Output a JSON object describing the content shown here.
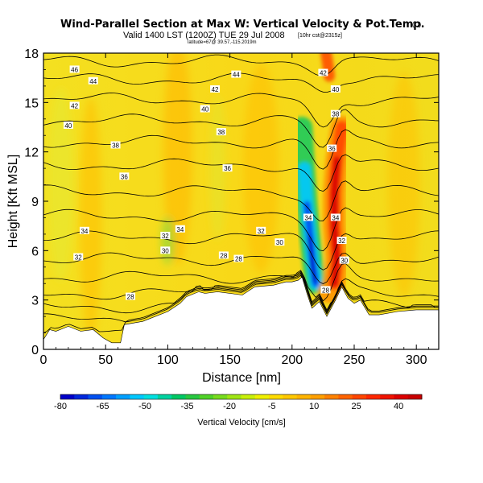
{
  "chart_data": {
    "type": "heatmap",
    "title": "Wind-Parallel Section at Max W: Vertical Velocity & Pot.Temp.",
    "title_mark": "(C)",
    "subtitle": "Valid 1400 LST (1200Z) TUE 29 Jul 2008",
    "subtitle_extra": "[10hr cst@2315z]",
    "subtitle_small": "latitude=67@ 39.57,-115.2019m",
    "xlabel": "Distance [nm]",
    "ylabel": "Height [Kft MSL]",
    "xlim": [
      0,
      318
    ],
    "ylim": [
      0,
      18
    ],
    "x_ticks": [
      "0",
      "50",
      "100",
      "150",
      "200",
      "250",
      "300"
    ],
    "y_ticks": [
      "0",
      "3",
      "6",
      "9",
      "12",
      "15",
      "18"
    ],
    "colorbar": {
      "label": "Vertical Velocity [cm/s]",
      "tick_labels": [
        "-80",
        "-65",
        "-50",
        "-35",
        "-20",
        "-5",
        "10",
        "25",
        "40"
      ],
      "colors": [
        "#0000c8",
        "#0028dc",
        "#0050f0",
        "#0078ff",
        "#00a0ff",
        "#00c8ff",
        "#00e0e0",
        "#00d2a0",
        "#00c864",
        "#28c840",
        "#50d228",
        "#78dc1e",
        "#a0e614",
        "#c8f00a",
        "#f0f000",
        "#ffdc00",
        "#ffc800",
        "#ffb400",
        "#ffa000",
        "#ff8200",
        "#ff6400",
        "#ff4600",
        "#ff2800",
        "#f01400",
        "#dc0000",
        "#c80000"
      ]
    },
    "terrain_profile": {
      "x": [
        0,
        5,
        10,
        20,
        30,
        40,
        48,
        55,
        62,
        65,
        80,
        100,
        110,
        115,
        125,
        130,
        140,
        160,
        170,
        185,
        195,
        200,
        205,
        208,
        212,
        216,
        222,
        228,
        235,
        240,
        245,
        250,
        255,
        262,
        270,
        285,
        300,
        318
      ],
      "y": [
        0.6,
        1.2,
        1.1,
        1.4,
        1.1,
        1.2,
        0.7,
        0.4,
        0.4,
        1.5,
        1.7,
        2.3,
        2.8,
        3.2,
        3.5,
        3.4,
        3.5,
        3.3,
        3.8,
        3.9,
        4.1,
        4.1,
        4.2,
        4.4,
        3.4,
        2.5,
        2.9,
        2.0,
        3.0,
        3.8,
        3.1,
        2.8,
        3.0,
        2.1,
        2.1,
        2.3,
        2.4,
        2.4
      ]
    },
    "contour_labels": [
      {
        "text": "46",
        "x": 25,
        "y": 17.0
      },
      {
        "text": "44",
        "x": 40,
        "y": 16.3
      },
      {
        "text": "44",
        "x": 155,
        "y": 16.7
      },
      {
        "text": "42",
        "x": 25,
        "y": 14.8
      },
      {
        "text": "42",
        "x": 138,
        "y": 15.8
      },
      {
        "text": "42",
        "x": 225,
        "y": 16.8
      },
      {
        "text": "40",
        "x": 20,
        "y": 13.6
      },
      {
        "text": "40",
        "x": 130,
        "y": 14.6
      },
      {
        "text": "40",
        "x": 235,
        "y": 15.8
      },
      {
        "text": "38",
        "x": 58,
        "y": 12.4
      },
      {
        "text": "38",
        "x": 143,
        "y": 13.2
      },
      {
        "text": "38",
        "x": 235,
        "y": 14.3
      },
      {
        "text": "36",
        "x": 65,
        "y": 10.5
      },
      {
        "text": "36",
        "x": 148,
        "y": 11.0
      },
      {
        "text": "36",
        "x": 232,
        "y": 12.2
      },
      {
        "text": "34",
        "x": 33,
        "y": 7.2
      },
      {
        "text": "34",
        "x": 110,
        "y": 7.3
      },
      {
        "text": "34",
        "x": 213,
        "y": 8.0
      },
      {
        "text": "34",
        "x": 235,
        "y": 8.0
      },
      {
        "text": "32",
        "x": 98,
        "y": 6.9
      },
      {
        "text": "32",
        "x": 175,
        "y": 7.2
      },
      {
        "text": "32",
        "x": 28,
        "y": 5.6
      },
      {
        "text": "32",
        "x": 240,
        "y": 6.6
      },
      {
        "text": "30",
        "x": 98,
        "y": 6.0
      },
      {
        "text": "30",
        "x": 190,
        "y": 6.5
      },
      {
        "text": "30",
        "x": 242,
        "y": 5.4
      },
      {
        "text": "28",
        "x": 145,
        "y": 5.7
      },
      {
        "text": "28",
        "x": 157,
        "y": 5.5
      },
      {
        "text": "28",
        "x": 70,
        "y": 3.2
      },
      {
        "text": "28",
        "x": 227,
        "y": 3.6
      }
    ]
  }
}
